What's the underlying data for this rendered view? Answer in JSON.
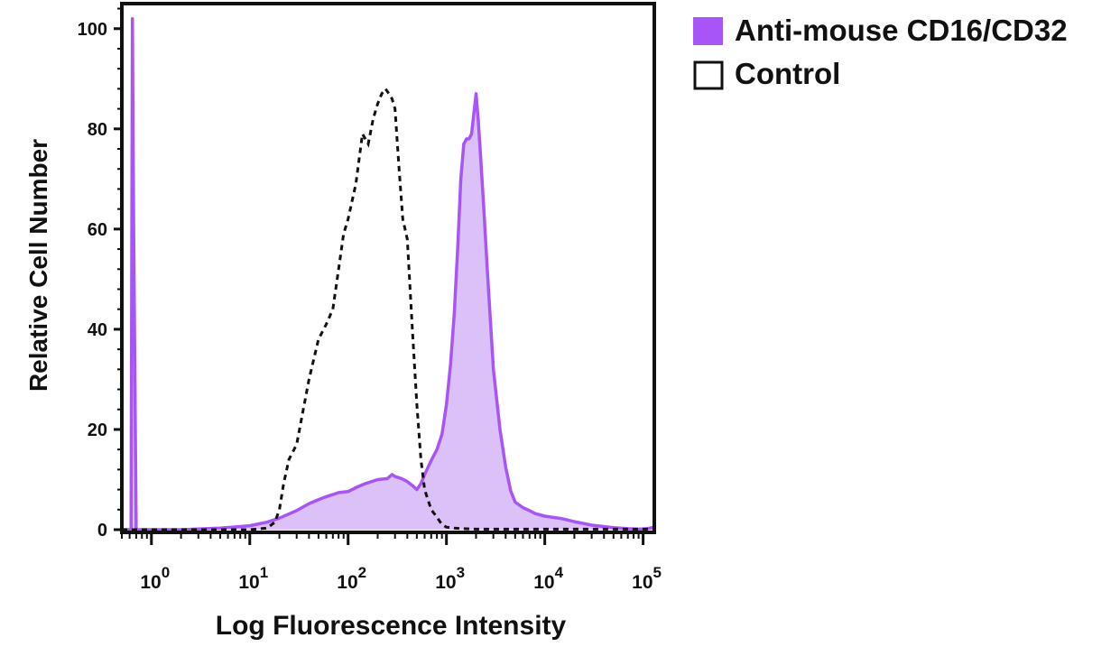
{
  "chart_data": {
    "type": "area",
    "xlabel": "Log Fluorescence Intensity",
    "ylabel": "Relative Cell Number",
    "x_scale": "log",
    "xlim": [
      0.5,
      130000
    ],
    "ylim": [
      0,
      105
    ],
    "x_ticks": [
      {
        "value": 1,
        "base": "10",
        "exp": "0"
      },
      {
        "value": 10,
        "base": "10",
        "exp": "1"
      },
      {
        "value": 100,
        "base": "10",
        "exp": "2"
      },
      {
        "value": 1000,
        "base": "10",
        "exp": "3"
      },
      {
        "value": 10000,
        "base": "10",
        "exp": "4"
      },
      {
        "value": 100000,
        "base": "10",
        "exp": "5"
      }
    ],
    "y_ticks": [
      {
        "value": 0,
        "label": "0"
      },
      {
        "value": 20,
        "label": "20"
      },
      {
        "value": 40,
        "label": "40"
      },
      {
        "value": 60,
        "label": "60"
      },
      {
        "value": 80,
        "label": "80"
      },
      {
        "value": 100,
        "label": "100"
      }
    ],
    "grid": false,
    "legend_position": "top-right, outside plot",
    "series": [
      {
        "name": "Anti-mouse CD16/CD32",
        "style": "filled",
        "line_color": "#a855f7",
        "fill_color": "#dcc0f8",
        "legend_color": "#a855f7",
        "x": [
          0.5,
          0.62,
          0.64,
          0.66,
          0.7,
          0.8,
          1,
          2,
          5,
          10,
          15,
          20,
          30,
          40,
          50,
          60,
          70,
          80,
          100,
          120,
          150,
          200,
          250,
          280,
          300,
          350,
          400,
          450,
          500,
          550,
          600,
          700,
          800,
          900,
          1000,
          1100,
          1200,
          1300,
          1400,
          1500,
          1600,
          1700,
          1800,
          1900,
          2000,
          2100,
          2200,
          2400,
          2600,
          3000,
          3500,
          4000,
          4500,
          5000,
          6000,
          7000,
          8000,
          10000,
          15000,
          20000,
          30000,
          50000,
          70000,
          90000,
          110000,
          130000
        ],
        "values": [
          0,
          0,
          102,
          60,
          0,
          0,
          0,
          0,
          0.3,
          0.8,
          1.5,
          2.3,
          3.8,
          5.2,
          6.0,
          6.6,
          7.0,
          7.4,
          7.6,
          8.4,
          9.2,
          10.0,
          10.2,
          11.0,
          10.6,
          10.2,
          9.6,
          8.8,
          8.0,
          9.2,
          11.0,
          13.8,
          16.0,
          19.0,
          25.0,
          33.0,
          43.0,
          56.0,
          70.0,
          77.0,
          78.0,
          78.0,
          79.0,
          83.0,
          87.0,
          82.0,
          76.0,
          64.0,
          52.0,
          32.0,
          20.0,
          12.5,
          7.8,
          5.5,
          4.4,
          3.8,
          3.2,
          2.7,
          2.2,
          1.6,
          0.9,
          0.4,
          0.2,
          0.1,
          0.2,
          0.5
        ]
      },
      {
        "name": "Control",
        "style": "dashed",
        "line_color": "#111111",
        "legend_color": "#111111",
        "x": [
          0.5,
          1,
          2,
          5,
          10,
          15,
          18,
          20,
          22,
          25,
          30,
          40,
          50,
          60,
          70,
          80,
          90,
          100,
          120,
          140,
          160,
          180,
          200,
          220,
          240,
          250,
          260,
          280,
          300,
          330,
          360,
          400,
          450,
          500,
          550,
          600,
          700,
          800,
          900,
          1000,
          1200,
          1500,
          2000,
          5000,
          10000,
          50000,
          130000
        ],
        "values": [
          0,
          0,
          0,
          0,
          0,
          0.3,
          1.5,
          4.0,
          9.0,
          14.0,
          17.0,
          30.0,
          38.0,
          41.0,
          44.0,
          52.0,
          59.0,
          62.0,
          69.0,
          79.0,
          77.0,
          82.0,
          85.0,
          87.0,
          88.0,
          87.5,
          87.0,
          86.0,
          84.0,
          72.0,
          62.0,
          58.0,
          40.0,
          25.0,
          14.0,
          8.0,
          4.0,
          2.5,
          1.0,
          0.5,
          0.3,
          0.2,
          0.1,
          0.1,
          0.1,
          0.1,
          0.1
        ]
      }
    ]
  }
}
